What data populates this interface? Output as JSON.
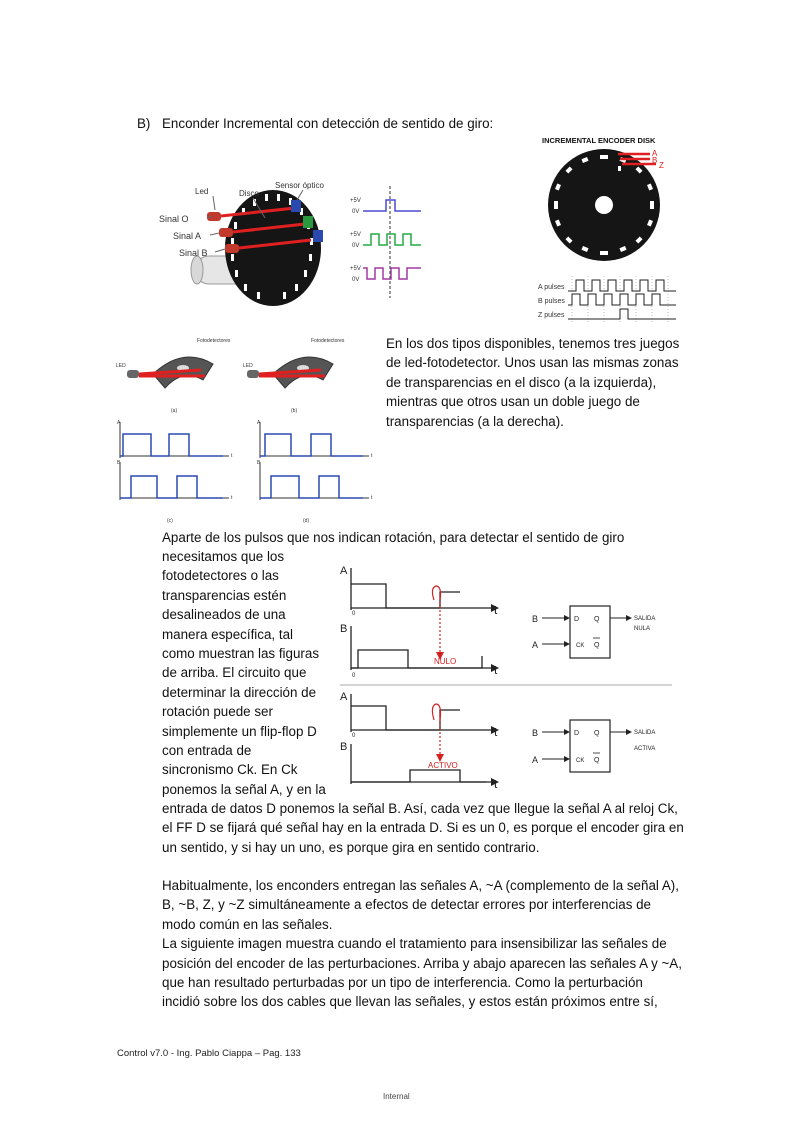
{
  "section_heading": {
    "label": "B)",
    "text": "Enconder Incremental con detección de sentido de giro:"
  },
  "figure_encoder_3d": {
    "labels": {
      "led": "Led",
      "disco": "Disco",
      "sensor": "Sensor óptico",
      "sinal_o": "Sinal O",
      "sinal_a": "Sinal A",
      "sinal_b": "Sinal B",
      "plus5v": "+5V",
      "zero_v": "0V"
    }
  },
  "figure_disk": {
    "title": "INCREMENTAL ENCODER DISK",
    "letters": [
      "A",
      "B",
      "Z"
    ],
    "pulse_labels": [
      "A pulses",
      "B pulses",
      "Z pulses"
    ]
  },
  "figure_photodetectors": {
    "header": "Fotodetectores",
    "led": "LED",
    "sub_a": "(a)",
    "sub_b": "(b)",
    "sub_c": "(c)",
    "sub_d": "(d)",
    "axis_a": "A",
    "axis_b": "B",
    "axis_t": "t"
  },
  "para_types": [
    "En los dos tipos disponibles, tenemos tres juegos",
    "de led-fotodetector. Unos usan las mismas zonas",
    "de transparencias en el disco (a la izquierda),",
    "mientras que otros usan un doble juego de",
    "transparencias (a la derecha)."
  ],
  "para_direction_top": "Aparte de los pulsos que nos indican rotación, para detectar el sentido de giro",
  "para_direction_left": [
    "necesitamos que los",
    "fotodetectores o las",
    "transparencias estén",
    "desalineados de una",
    "manera específica, tal",
    "como muestran las figuras",
    "de arriba. El circuito que",
    "determinar la dirección de",
    "rotación puede ser",
    "simplemente un flip-flop D",
    "con entrada de",
    "sincronismo Ck. En Ck",
    "ponemos la señal A, y en la"
  ],
  "para_direction_bottom": [
    "entrada de datos D ponemos la señal B. Así, cada vez que llegue la señal A al reloj Ck,",
    "el FF D se fijará qué señal hay en la entrada D. Si es un 0, es porque el encoder gira en",
    "un sentido, y si hay un uno, es porque gira en sentido contrario."
  ],
  "figure_flipflop": {
    "sig_a": "A",
    "sig_b": "B",
    "t": "t",
    "zero": "0",
    "nulo": "NULO",
    "activo": "ACTIVO",
    "d": "D",
    "q": "Q",
    "ck": "CK",
    "qbar": "Q",
    "salida": "SALIDA",
    "nula": "NULA",
    "activa": "ACTIVA"
  },
  "para_signals": [
    "Habitualmente, los enconders entregan las señales A, ~A (complemento de la señal A),",
    "B, ~B, Z, y ~Z simultáneamente a efectos de detectar errores por interferencias de",
    "modo común en las señales.",
    "La siguiente imagen muestra cuando el tratamiento para insensibilizar las señales de",
    "posición del encoder de las perturbaciones. Arriba y abajo aparecen las señales A y ~A,",
    "que han resultado perturbadas por un tipo de interferencia. Como la perturbación",
    "incidió sobre los dos cables que llevan las señales, y estos están próximos entre sí,"
  ],
  "footer": "Control v7.0 - Ing. Pablo Ciappa – Pag. 133",
  "classification": "Internal",
  "colors": {
    "text": "#111111",
    "signal_o": "#4a4ad0",
    "signal_a": "#22aa44",
    "signal_b": "#a03aa0",
    "annotation_red": "#d42020"
  }
}
